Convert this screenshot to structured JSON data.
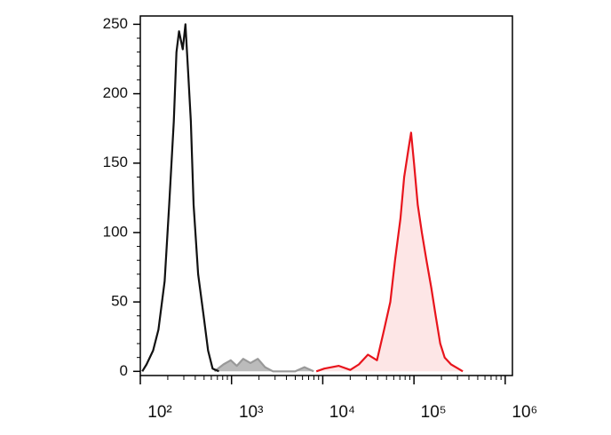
{
  "chart_data": {
    "type": "histogram-overlay",
    "xscale": "log",
    "xlim": [
      100,
      1200000
    ],
    "xticks": [
      {
        "value": 100,
        "label": "10²"
      },
      {
        "value": 1000,
        "label": "10³"
      },
      {
        "value": 10000,
        "label": "10⁴"
      },
      {
        "value": 100000,
        "label": "10⁵"
      },
      {
        "value": 1000000,
        "label": "10⁶"
      }
    ],
    "xminorticks": [
      200,
      300,
      400,
      500,
      600,
      700,
      800,
      900,
      2000,
      3000,
      4000,
      5000,
      6000,
      7000,
      8000,
      9000,
      20000,
      30000,
      40000,
      50000,
      60000,
      70000,
      80000,
      90000,
      200000,
      300000,
      400000,
      500000,
      600000,
      700000,
      800000,
      900000
    ],
    "ylim": [
      -3,
      256
    ],
    "yticks": [
      0,
      50,
      100,
      150,
      200,
      250
    ],
    "yminorticks": [
      10,
      20,
      30,
      40,
      60,
      70,
      80,
      90,
      110,
      120,
      130,
      140,
      160,
      170,
      180,
      190,
      210,
      220,
      230,
      240
    ],
    "series": [
      {
        "color": "#999999",
        "fill": "#bbbbbb",
        "x": [
          650,
          815,
          980,
          1140,
          1340,
          1610,
          1940,
          2330,
          2850,
          5000,
          6300,
          7950
        ],
        "values": [
          0,
          5,
          8,
          4,
          9,
          6,
          9,
          3,
          0,
          0,
          3,
          0
        ]
      },
      {
        "color": "#111111",
        "fill": "none",
        "x": [
          105,
          117,
          138,
          158,
          185,
          207,
          233,
          249,
          266,
          292,
          312,
          335,
          358,
          384,
          430,
          494,
          553,
          620,
          727
        ],
        "values": [
          0,
          5,
          15,
          30,
          65,
          120,
          180,
          230,
          245,
          232,
          250,
          215,
          180,
          120,
          70,
          40,
          15,
          2,
          0
        ]
      },
      {
        "color": "#e8141c",
        "fill": "#fde6e6",
        "x": [
          8500,
          10400,
          15000,
          20000,
          24900,
          31300,
          39300,
          47000,
          55000,
          62000,
          71000,
          78000,
          87000,
          93000,
          100000,
          110000,
          122000,
          137000,
          155000,
          173000,
          194000,
          217000,
          255000,
          305000,
          343000
        ],
        "values": [
          0,
          2,
          4,
          1,
          5,
          12,
          8,
          30,
          50,
          80,
          110,
          140,
          160,
          172,
          150,
          120,
          100,
          80,
          60,
          40,
          20,
          10,
          5,
          2,
          0
        ]
      }
    ]
  }
}
